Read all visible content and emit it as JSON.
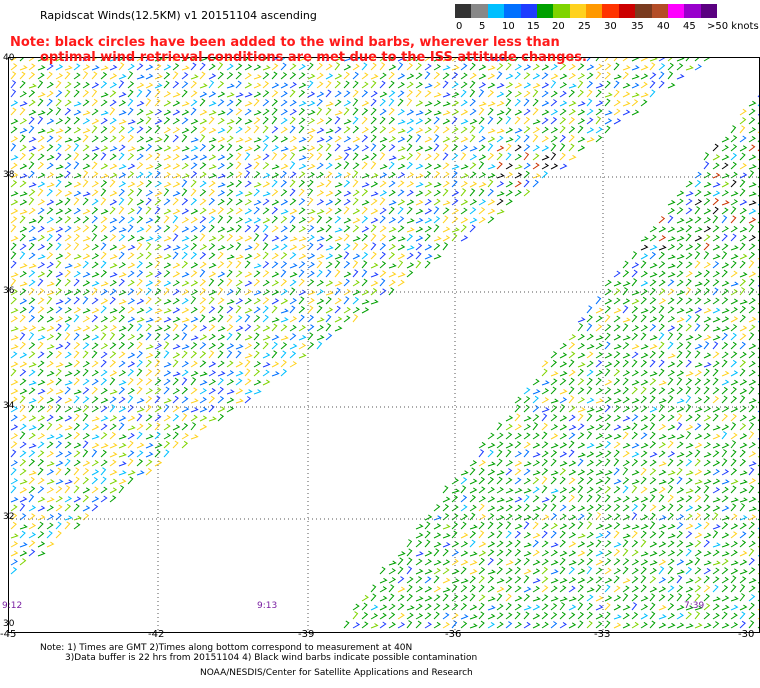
{
  "title": "Rapidscat Winds(12.5KM) v1 20151104 ascending",
  "legend": {
    "colors": [
      "#333333",
      "#888888",
      "#00bfff",
      "#0070ff",
      "#1e3cff",
      "#00a000",
      "#7fd400",
      "#ffd21e",
      "#ff9900",
      "#ff3300",
      "#cc0000",
      "#7a3b1f",
      "#b44d27",
      "#ff00ff",
      "#9900cc",
      "#5a0080"
    ],
    "labels": [
      "0",
      "5",
      "10",
      "15",
      "20",
      "25",
      "30",
      "35",
      "40",
      "45",
      ">50 knots"
    ]
  },
  "note": {
    "line1": "Note: black circles have been added to the wind barbs, wherever less than",
    "line2": "optimal wind retrieval conditions are met due to the ISS attitude changes."
  },
  "map": {
    "lat_labels": [
      "40",
      "38",
      "36",
      "34",
      "32",
      "30"
    ],
    "lon_labels": [
      "-45",
      "-42",
      "-39",
      "-36",
      "-33",
      "-30"
    ],
    "time_labels": [
      "9:12",
      "9:13",
      "7:39"
    ]
  },
  "footer": {
    "note_line1": "Note: 1) Times are GMT 2)Times along bottom correspond to measurement at 40N",
    "note_line2": "3)Data buffer is 22 hrs from 20151104 4) Black wind barbs indicate possible contamination",
    "credit": "NOAA/NESDIS/Center for Satellite Applications and Research"
  }
}
